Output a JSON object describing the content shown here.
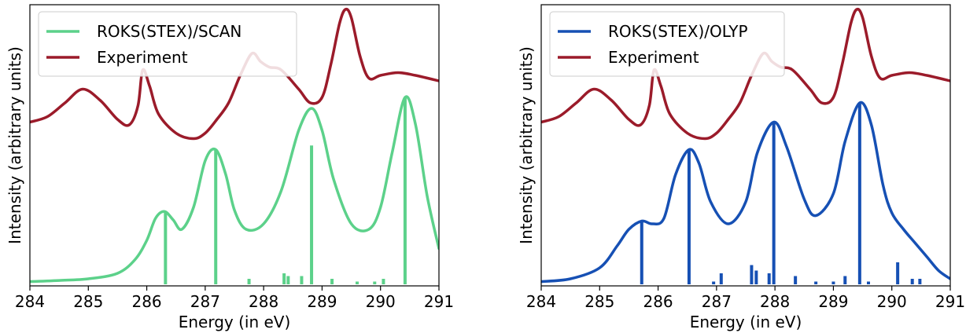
{
  "chart_data": [
    {
      "type": "line",
      "xlabel": "Energy (in eV)",
      "ylabel": "Intensity (arbitrary units)",
      "xlim": [
        284,
        291
      ],
      "ylim": [
        0,
        1
      ],
      "xticks": [
        "284",
        "285",
        "286",
        "287",
        "288",
        "289",
        "290",
        "291"
      ],
      "legend_position": "top-left",
      "series": [
        {
          "name": "ROKS(STEX)/SCAN",
          "color": "#5cd18a",
          "kind": "spectrum",
          "x": [
            284.0,
            284.5,
            285.0,
            285.5,
            285.8,
            286.0,
            286.15,
            286.3,
            286.45,
            286.6,
            286.8,
            287.0,
            287.18,
            287.35,
            287.5,
            287.7,
            288.0,
            288.3,
            288.6,
            288.82,
            289.0,
            289.2,
            289.5,
            289.8,
            290.0,
            290.2,
            290.42,
            290.6,
            290.8,
            291.0
          ],
          "y": [
            0.01,
            0.014,
            0.02,
            0.04,
            0.09,
            0.16,
            0.24,
            0.265,
            0.235,
            0.2,
            0.28,
            0.45,
            0.49,
            0.4,
            0.27,
            0.2,
            0.22,
            0.34,
            0.56,
            0.64,
            0.56,
            0.38,
            0.22,
            0.2,
            0.28,
            0.48,
            0.68,
            0.58,
            0.32,
            0.13
          ]
        },
        {
          "name": "Experiment",
          "color": "#9b1b2a",
          "kind": "spectrum",
          "x": [
            284.0,
            284.3,
            284.6,
            284.9,
            285.2,
            285.5,
            285.7,
            285.85,
            285.93,
            286.05,
            286.2,
            286.5,
            286.8,
            287.0,
            287.2,
            287.4,
            287.6,
            287.8,
            287.95,
            288.1,
            288.3,
            288.6,
            288.8,
            289.0,
            289.15,
            289.3,
            289.4,
            289.5,
            289.65,
            289.8,
            290.0,
            290.3,
            290.6,
            291.0
          ],
          "y": [
            0.59,
            0.61,
            0.66,
            0.71,
            0.67,
            0.6,
            0.58,
            0.65,
            0.78,
            0.72,
            0.62,
            0.55,
            0.53,
            0.55,
            0.6,
            0.66,
            0.76,
            0.84,
            0.81,
            0.79,
            0.78,
            0.71,
            0.66,
            0.68,
            0.8,
            0.95,
            1.0,
            0.97,
            0.83,
            0.75,
            0.76,
            0.77,
            0.76,
            0.74
          ]
        },
        {
          "name": "sticks",
          "color": "#5cd18a",
          "kind": "sticks",
          "x": [
            286.32,
            287.18,
            287.75,
            288.35,
            288.42,
            288.65,
            288.82,
            289.17,
            289.6,
            289.9,
            290.05,
            290.42
          ],
          "y": [
            0.265,
            0.49,
            0.02,
            0.04,
            0.03,
            0.03,
            0.505,
            0.02,
            0.01,
            0.01,
            0.02,
            0.68
          ]
        }
      ]
    },
    {
      "type": "line",
      "xlabel": "Energy (in eV)",
      "ylabel": "Intensity (arbitrary units)",
      "xlim": [
        284,
        291
      ],
      "ylim": [
        0,
        1
      ],
      "xticks": [
        "284",
        "285",
        "286",
        "287",
        "288",
        "289",
        "290",
        "291"
      ],
      "legend_position": "top-left",
      "series": [
        {
          "name": "ROKS(STEX)/OLYP",
          "color": "#1650b4",
          "kind": "spectrum",
          "x": [
            284.0,
            284.5,
            285.0,
            285.3,
            285.5,
            285.72,
            285.9,
            286.1,
            286.3,
            286.53,
            286.7,
            286.9,
            287.2,
            287.5,
            287.7,
            287.98,
            288.2,
            288.5,
            288.7,
            289.0,
            289.2,
            289.45,
            289.65,
            289.85,
            290.0,
            290.2,
            290.4,
            290.6,
            290.8,
            291.0
          ],
          "y": [
            0.01,
            0.02,
            0.06,
            0.14,
            0.2,
            0.23,
            0.22,
            0.24,
            0.4,
            0.49,
            0.44,
            0.3,
            0.22,
            0.3,
            0.48,
            0.59,
            0.5,
            0.31,
            0.25,
            0.33,
            0.52,
            0.66,
            0.58,
            0.36,
            0.26,
            0.2,
            0.15,
            0.1,
            0.05,
            0.02
          ]
        },
        {
          "name": "Experiment",
          "color": "#9b1b2a",
          "kind": "spectrum",
          "x": [
            284.0,
            284.3,
            284.6,
            284.9,
            285.2,
            285.5,
            285.7,
            285.85,
            285.93,
            286.05,
            286.2,
            286.5,
            286.8,
            287.0,
            287.2,
            287.4,
            287.6,
            287.8,
            287.95,
            288.1,
            288.3,
            288.6,
            288.8,
            289.0,
            289.15,
            289.3,
            289.4,
            289.5,
            289.65,
            289.8,
            290.0,
            290.3,
            290.6,
            291.0
          ],
          "y": [
            0.59,
            0.61,
            0.66,
            0.71,
            0.67,
            0.6,
            0.58,
            0.65,
            0.78,
            0.72,
            0.62,
            0.55,
            0.53,
            0.55,
            0.6,
            0.66,
            0.76,
            0.84,
            0.81,
            0.79,
            0.78,
            0.71,
            0.66,
            0.68,
            0.8,
            0.95,
            1.0,
            0.97,
            0.83,
            0.75,
            0.76,
            0.77,
            0.76,
            0.74
          ]
        },
        {
          "name": "sticks",
          "color": "#1650b4",
          "kind": "sticks",
          "x": [
            285.72,
            286.53,
            286.95,
            287.08,
            287.6,
            287.68,
            287.9,
            287.98,
            288.35,
            288.7,
            289.0,
            289.2,
            289.45,
            289.6,
            290.1,
            290.35,
            290.48
          ],
          "y": [
            0.23,
            0.49,
            0.01,
            0.04,
            0.07,
            0.05,
            0.04,
            0.59,
            0.03,
            0.01,
            0.01,
            0.03,
            0.66,
            0.01,
            0.08,
            0.02,
            0.02
          ]
        }
      ]
    }
  ]
}
